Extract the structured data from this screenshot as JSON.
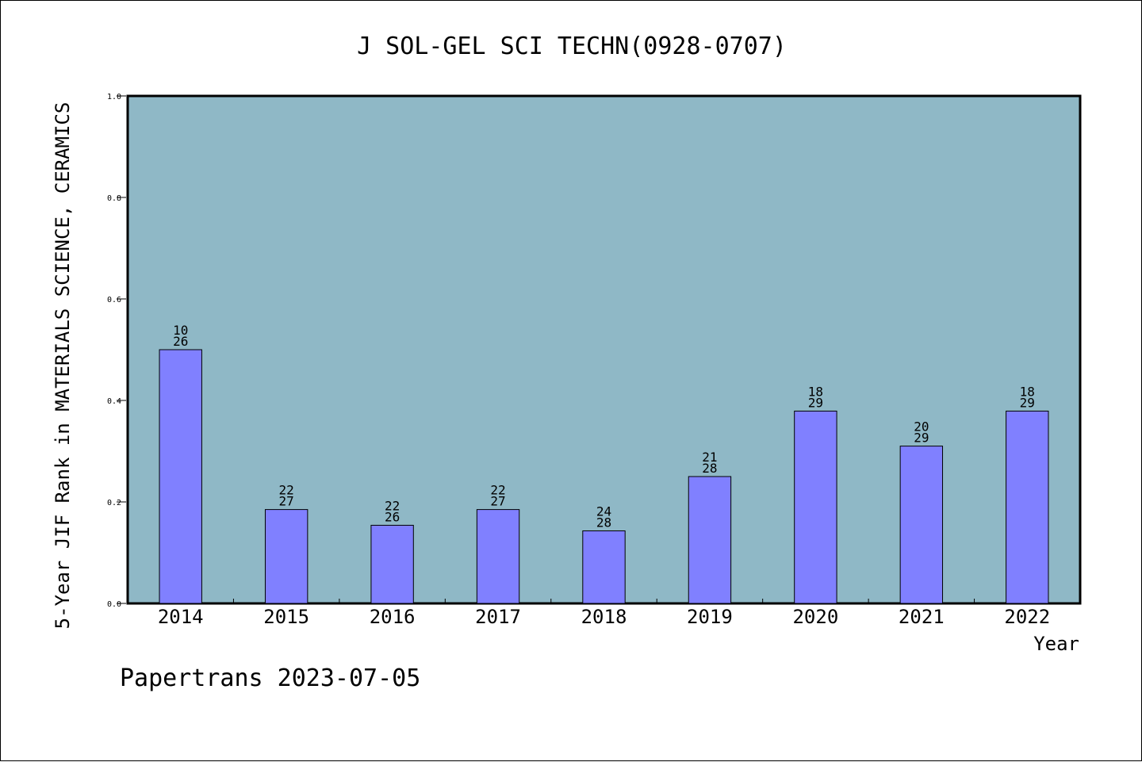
{
  "chart_data": {
    "type": "bar",
    "title": "J SOL-GEL SCI TECHN(0928-0707)",
    "xlabel": "Year",
    "ylabel": "5-Year JIF Rank in MATERIALS SCIENCE, CERAMICS",
    "ylim": [
      0,
      1.0
    ],
    "yticks": [
      "0.0",
      "0.2",
      "0.4",
      "0.6",
      "0.8",
      "1.0"
    ],
    "categories": [
      "2014",
      "2015",
      "2016",
      "2017",
      "2018",
      "2019",
      "2020",
      "2021",
      "2022"
    ],
    "values": [
      0.5,
      0.185,
      0.154,
      0.185,
      0.143,
      0.25,
      0.379,
      0.31,
      0.379
    ],
    "rank": [
      "10",
      "22",
      "22",
      "22",
      "24",
      "21",
      "18",
      "20",
      "18"
    ],
    "total": [
      "26",
      "27",
      "26",
      "27",
      "28",
      "28",
      "29",
      "29",
      "29"
    ],
    "plot_bg_color": "#8fb8c6",
    "bar_color": "#8080ff",
    "grid": false
  },
  "footer": {
    "text": "Papertrans 2023-07-05"
  }
}
